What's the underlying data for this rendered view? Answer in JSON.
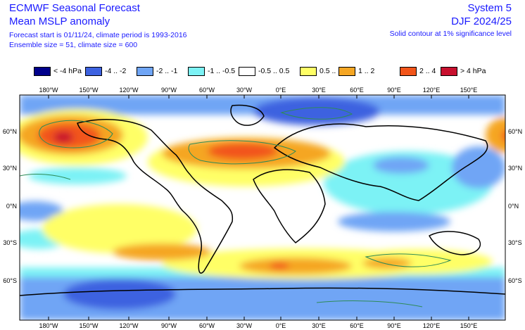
{
  "header": {
    "title_left_1": "ECMWF Seasonal Forecast",
    "title_left_2": "Mean MSLP anomaly",
    "title_left_3": "Forecast start is 01/11/24, climate period is 1993-2016",
    "title_left_4": "Ensemble size = 51, climate size = 600",
    "title_right_1": "System 5",
    "title_right_2": "DJF 2024/25",
    "title_right_3": "Solid contour at 1% significance level"
  },
  "legend": [
    {
      "label": "< -4 hPa",
      "color": "#00008b"
    },
    {
      "label": "-4 .. -2",
      "color": "#3d62e0"
    },
    {
      "label": "-2 .. -1",
      "color": "#6fa5f5"
    },
    {
      "label": "-1 .. -0.5",
      "color": "#7cf2f5"
    },
    {
      "label": "-0.5 .. 0.5",
      "color": "#ffffff"
    },
    {
      "label": "0.5 .. 1",
      "color": "#ffff66"
    },
    {
      "label": "1 .. 2",
      "color": "#f5a623"
    },
    {
      "label": "2 .. 4",
      "color": "#f2551a"
    },
    {
      "label": "> 4 hPa",
      "color": "#c8102e"
    }
  ],
  "axes": {
    "lon_labels": [
      "180°W",
      "150°W",
      "120°W",
      "90°W",
      "60°W",
      "30°W",
      "0°E",
      "30°E",
      "60°E",
      "90°E",
      "120°E",
      "150°E"
    ],
    "lat_labels": [
      "60°N",
      "30°N",
      "0°N",
      "30°S",
      "60°S"
    ]
  }
}
